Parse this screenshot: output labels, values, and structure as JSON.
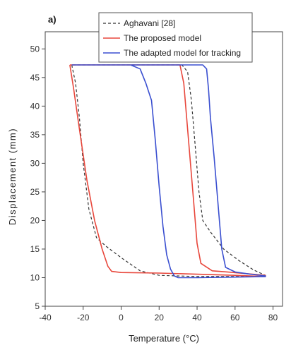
{
  "panel_label": "a)",
  "chart_data": {
    "type": "line",
    "xlabel": "Temperature (°C)",
    "ylabel": "Displacement (mm)",
    "xlim": [
      -40,
      85
    ],
    "ylim": [
      5,
      53
    ],
    "xticks": [
      -40,
      -20,
      0,
      20,
      40,
      60,
      80
    ],
    "xtick_labels": [
      "-40",
      "-20",
      "0",
      "20",
      "40",
      "60",
      "80"
    ],
    "yticks": [
      5,
      10,
      15,
      20,
      25,
      30,
      35,
      40,
      45,
      50
    ],
    "ytick_labels": [
      "5",
      "10",
      "15",
      "20",
      "25",
      "30",
      "35",
      "40",
      "45",
      "50"
    ],
    "grid": false,
    "legend_position": "top-right",
    "series": [
      {
        "name": "Aghavani [28]",
        "color": "#333333",
        "dash": "4,3",
        "points": [
          [
            -26,
            47.2
          ],
          [
            -24,
            44
          ],
          [
            -22,
            38
          ],
          [
            -20,
            30
          ],
          [
            -17,
            22
          ],
          [
            -13,
            17
          ],
          [
            -8,
            15.5
          ],
          [
            0,
            13.5
          ],
          [
            10,
            11.2
          ],
          [
            20,
            10.4
          ],
          [
            40,
            10.2
          ],
          [
            60,
            10.2
          ],
          [
            76,
            10.2
          ],
          [
            76,
            10.4
          ],
          [
            70,
            11.3
          ],
          [
            62,
            13
          ],
          [
            54,
            15
          ],
          [
            47,
            18
          ],
          [
            43,
            20
          ],
          [
            41,
            25
          ],
          [
            39,
            33
          ],
          [
            37,
            41
          ],
          [
            35,
            46
          ],
          [
            32,
            47.2
          ],
          [
            -26,
            47.2
          ]
        ]
      },
      {
        "name": "The proposed model",
        "color": "#e8473c",
        "dash": "",
        "points": [
          [
            -27,
            47.2
          ],
          [
            -25,
            43
          ],
          [
            -22,
            36
          ],
          [
            -18,
            27
          ],
          [
            -14,
            20
          ],
          [
            -10,
            15
          ],
          [
            -7,
            12
          ],
          [
            -5,
            11.1
          ],
          [
            0,
            10.9
          ],
          [
            20,
            10.8
          ],
          [
            40,
            10.6
          ],
          [
            60,
            10.4
          ],
          [
            76,
            10.2
          ],
          [
            76,
            10.4
          ],
          [
            66,
            10.7
          ],
          [
            56,
            11
          ],
          [
            48,
            11.2
          ],
          [
            42,
            12.5
          ],
          [
            40,
            16
          ],
          [
            38,
            24
          ],
          [
            36,
            32
          ],
          [
            34,
            40
          ],
          [
            33,
            44
          ],
          [
            31,
            47.2
          ],
          [
            -27,
            47.2
          ]
        ]
      },
      {
        "name": "The adapted model for tracking",
        "color": "#3a4fd0",
        "dash": "",
        "points": [
          [
            -26,
            47.2
          ],
          [
            5,
            47.2
          ],
          [
            10,
            46.5
          ],
          [
            13,
            44
          ],
          [
            16,
            41
          ],
          [
            18,
            34
          ],
          [
            20,
            26
          ],
          [
            22,
            19
          ],
          [
            24,
            14
          ],
          [
            26,
            11.5
          ],
          [
            28,
            10.3
          ],
          [
            30,
            10.0
          ],
          [
            40,
            10.0
          ],
          [
            60,
            10.1
          ],
          [
            76,
            10.2
          ],
          [
            76,
            10.3
          ],
          [
            68,
            10.6
          ],
          [
            60,
            11
          ],
          [
            55,
            11.8
          ],
          [
            53,
            15
          ],
          [
            51,
            23
          ],
          [
            49,
            31
          ],
          [
            47,
            38
          ],
          [
            46,
            43
          ],
          [
            45,
            46.5
          ],
          [
            43,
            47.2
          ],
          [
            -26,
            47.2
          ]
        ]
      }
    ]
  }
}
